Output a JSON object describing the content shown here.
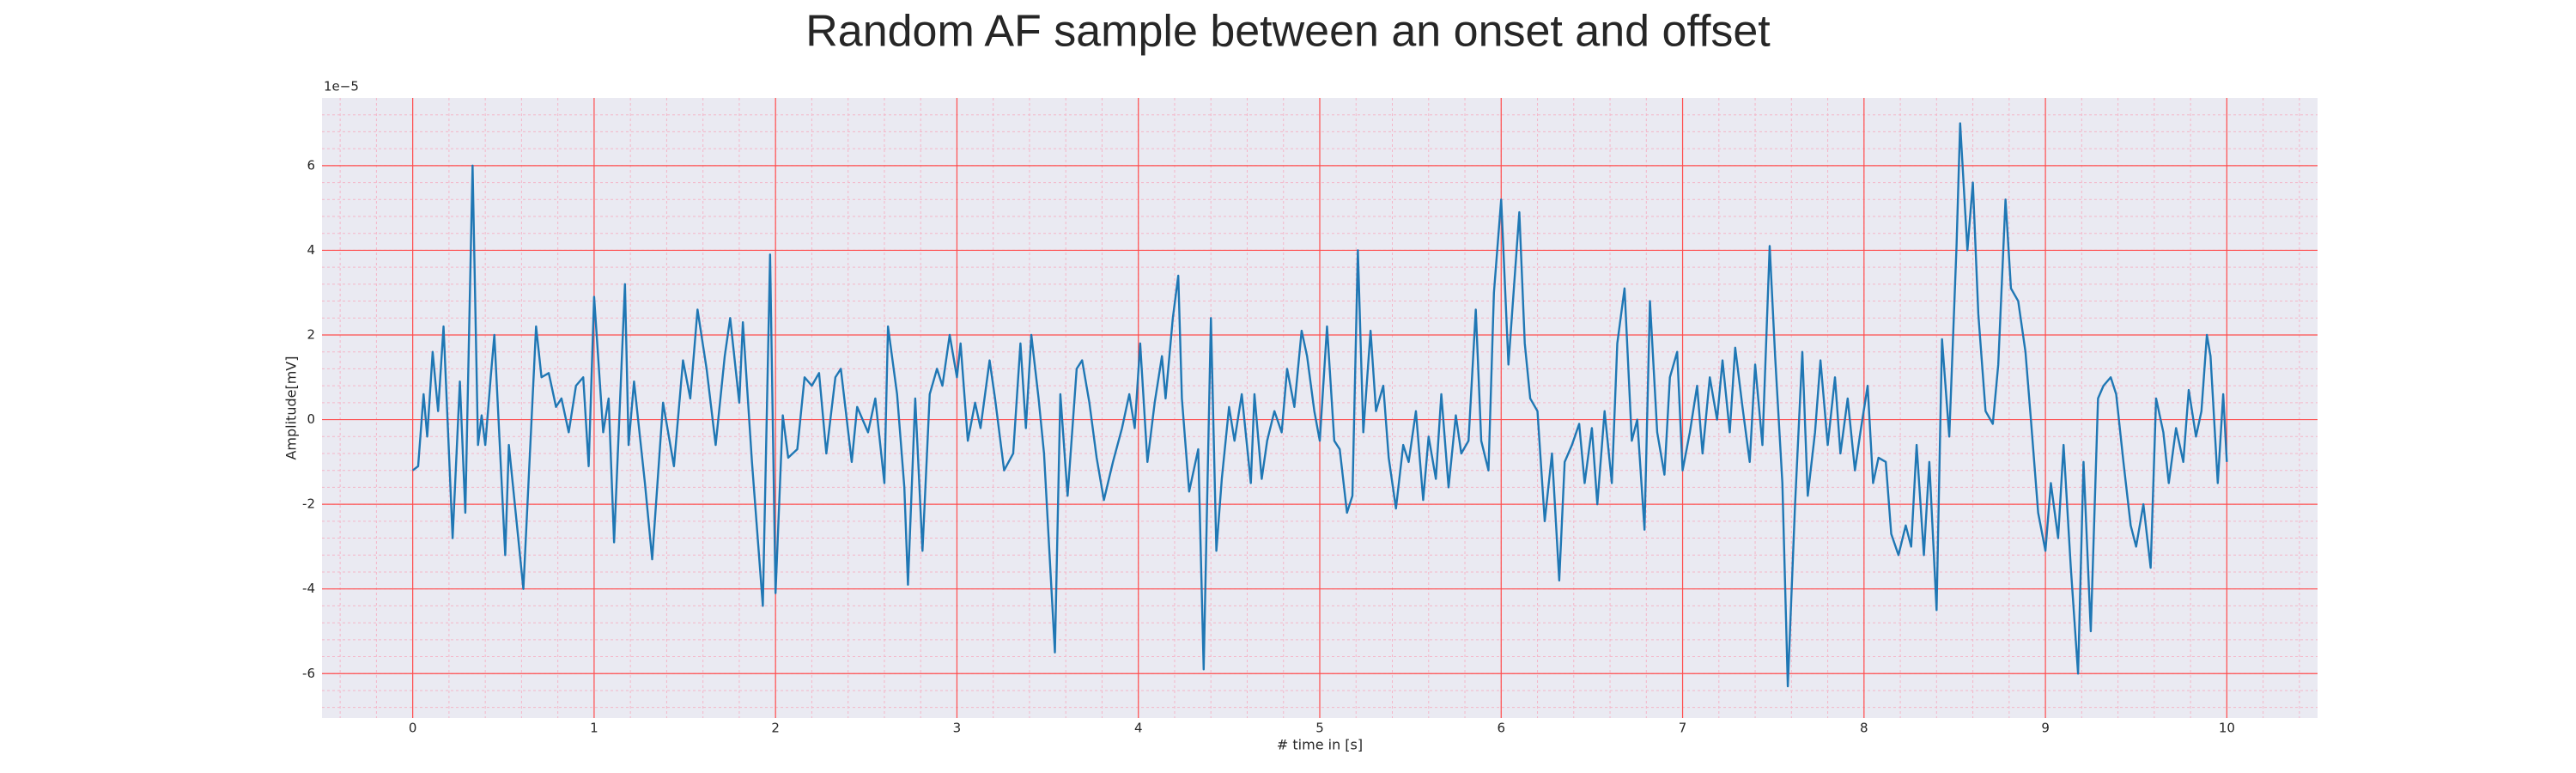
{
  "chart_data": {
    "type": "line",
    "title": "Random AF sample between an onset and offset",
    "x_label": "# time in [s]",
    "y_label": "Amplitude[mV]",
    "y_offset_label": "1e−5",
    "color": "#1f77b4",
    "grid_color": "#ff4d4d",
    "minor_grid_color": "#f4b6c8",
    "background": "#eaeaf2",
    "grid": true,
    "minor_grid": true,
    "xlim": [
      -0.5,
      10.5
    ],
    "xticks": [
      0,
      1,
      2,
      3,
      4,
      5,
      6,
      7,
      8,
      9,
      10
    ],
    "ylim": [
      -7.05,
      7.6
    ],
    "yticks": [
      -6,
      -4,
      -2,
      0,
      2,
      4,
      6
    ],
    "x": [
      0,
      0.03,
      0.06,
      0.08,
      0.11,
      0.14,
      0.17,
      0.22,
      0.26,
      0.29,
      0.33,
      0.36,
      0.38,
      0.4,
      0.43,
      0.45,
      0.51,
      0.53,
      0.61,
      0.68,
      0.71,
      0.75,
      0.79,
      0.82,
      0.86,
      0.9,
      0.94,
      0.97,
      1.0,
      1.05,
      1.08,
      1.11,
      1.17,
      1.19,
      1.22,
      1.28,
      1.32,
      1.38,
      1.44,
      1.49,
      1.53,
      1.57,
      1.62,
      1.67,
      1.72,
      1.75,
      1.8,
      1.82,
      1.87,
      1.93,
      1.97,
      2.0,
      2.04,
      2.07,
      2.12,
      2.16,
      2.2,
      2.24,
      2.28,
      2.33,
      2.36,
      2.42,
      2.45,
      2.51,
      2.55,
      2.6,
      2.62,
      2.67,
      2.71,
      2.73,
      2.77,
      2.81,
      2.85,
      2.89,
      2.92,
      2.96,
      3.0,
      3.02,
      3.06,
      3.1,
      3.13,
      3.18,
      3.21,
      3.26,
      3.31,
      3.35,
      3.38,
      3.41,
      3.45,
      3.48,
      3.54,
      3.57,
      3.61,
      3.66,
      3.69,
      3.73,
      3.77,
      3.81,
      3.86,
      3.91,
      3.95,
      3.98,
      4.01,
      4.05,
      4.09,
      4.13,
      4.15,
      4.19,
      4.22,
      4.24,
      4.28,
      4.33,
      4.36,
      4.4,
      4.43,
      4.46,
      4.5,
      4.53,
      4.57,
      4.62,
      4.64,
      4.68,
      4.71,
      4.75,
      4.79,
      4.82,
      4.86,
      4.9,
      4.93,
      4.97,
      5.0,
      5.04,
      5.08,
      5.11,
      5.15,
      5.18,
      5.21,
      5.24,
      5.28,
      5.31,
      5.35,
      5.38,
      5.42,
      5.46,
      5.49,
      5.53,
      5.57,
      5.6,
      5.64,
      5.67,
      5.71,
      5.75,
      5.78,
      5.82,
      5.86,
      5.89,
      5.93,
      5.96,
      6.0,
      6.04,
      6.07,
      6.1,
      6.13,
      6.16,
      6.2,
      6.24,
      6.28,
      6.32,
      6.35,
      6.39,
      6.43,
      6.46,
      6.5,
      6.53,
      6.57,
      6.61,
      6.64,
      6.68,
      6.72,
      6.75,
      6.79,
      6.82,
      6.86,
      6.9,
      6.93,
      6.97,
      7.0,
      7.04,
      7.08,
      7.11,
      7.15,
      7.19,
      7.22,
      7.26,
      7.29,
      7.33,
      7.37,
      7.4,
      7.44,
      7.48,
      7.51,
      7.55,
      7.58,
      7.62,
      7.66,
      7.69,
      7.73,
      7.76,
      7.8,
      7.84,
      7.87,
      7.91,
      7.95,
      7.98,
      8.02,
      8.05,
      8.08,
      8.12,
      8.15,
      8.19,
      8.23,
      8.26,
      8.29,
      8.33,
      8.36,
      8.4,
      8.43,
      8.47,
      8.51,
      8.53,
      8.57,
      8.6,
      8.63,
      8.67,
      8.71,
      8.74,
      8.78,
      8.81,
      8.85,
      8.89,
      8.92,
      8.96,
      9.0,
      9.03,
      9.07,
      9.1,
      9.14,
      9.18,
      9.21,
      9.25,
      9.29,
      9.32,
      9.36,
      9.39,
      9.43,
      9.47,
      9.5,
      9.54,
      9.58,
      9.61,
      9.65,
      9.68,
      9.72,
      9.76,
      9.79,
      9.83,
      9.86,
      9.89,
      9.91,
      9.95,
      9.98,
      10.0
    ],
    "values": [
      -1.2,
      -1.1,
      0.6,
      -0.4,
      1.6,
      0.2,
      2.2,
      -2.8,
      0.9,
      -2.2,
      6.0,
      -0.6,
      0.1,
      -0.6,
      1.0,
      2.0,
      -3.2,
      -0.6,
      -4.0,
      2.2,
      1.0,
      1.1,
      0.3,
      0.5,
      -0.3,
      0.8,
      1.0,
      -1.1,
      2.9,
      -0.3,
      0.5,
      -2.9,
      3.2,
      -0.6,
      0.9,
      -1.5,
      -3.3,
      0.4,
      -1.1,
      1.4,
      0.5,
      2.6,
      1.2,
      -0.6,
      1.5,
      2.4,
      0.4,
      2.3,
      -1.0,
      -4.4,
      3.9,
      -4.1,
      0.1,
      -0.9,
      -0.7,
      1.0,
      0.8,
      1.1,
      -0.8,
      1.0,
      1.2,
      -1.0,
      0.3,
      -0.3,
      0.5,
      -1.5,
      2.2,
      0.6,
      -1.6,
      -3.9,
      0.5,
      -3.1,
      0.6,
      1.2,
      0.8,
      2.0,
      1.0,
      1.8,
      -0.5,
      0.4,
      -0.2,
      1.4,
      0.5,
      -1.2,
      -0.8,
      1.8,
      -0.2,
      2.0,
      0.5,
      -0.8,
      -5.5,
      0.6,
      -1.8,
      1.2,
      1.4,
      0.4,
      -0.9,
      -1.9,
      -1.0,
      -0.2,
      0.6,
      -0.2,
      1.8,
      -1.0,
      0.4,
      1.5,
      0.5,
      2.4,
      3.4,
      0.5,
      -1.7,
      -0.7,
      -5.9,
      2.4,
      -3.1,
      -1.4,
      0.3,
      -0.5,
      0.6,
      -1.5,
      0.6,
      -1.4,
      -0.5,
      0.2,
      -0.3,
      1.2,
      0.3,
      2.1,
      1.5,
      0.2,
      -0.5,
      2.2,
      -0.5,
      -0.7,
      -2.2,
      -1.8,
      4.0,
      -0.3,
      2.1,
      0.2,
      0.8,
      -0.9,
      -2.1,
      -0.6,
      -1.0,
      0.2,
      -1.9,
      -0.4,
      -1.4,
      0.6,
      -1.6,
      0.1,
      -0.8,
      -0.5,
      2.6,
      -0.5,
      -1.2,
      3.0,
      5.2,
      1.3,
      3.1,
      4.9,
      1.8,
      0.5,
      0.2,
      -2.4,
      -0.8,
      -3.8,
      -1.0,
      -0.6,
      -0.1,
      -1.5,
      -0.2,
      -2.0,
      0.2,
      -1.5,
      1.8,
      3.1,
      -0.5,
      0.0,
      -2.6,
      2.8,
      -0.3,
      -1.3,
      1.0,
      1.6,
      -1.2,
      -0.3,
      0.8,
      -0.8,
      1.0,
      0.0,
      1.4,
      -0.3,
      1.7,
      0.3,
      -1.0,
      1.3,
      -0.6,
      4.1,
      1.5,
      -1.5,
      -6.3,
      -2.0,
      1.6,
      -1.8,
      -0.3,
      1.4,
      -0.6,
      1.0,
      -0.8,
      0.5,
      -1.2,
      -0.3,
      0.8,
      -1.5,
      -0.9,
      -1.0,
      -2.7,
      -3.2,
      -2.5,
      -3.0,
      -0.6,
      -3.2,
      -1.0,
      -4.5,
      1.9,
      -0.4,
      4.1,
      7.0,
      4.0,
      5.6,
      2.5,
      0.2,
      -0.1,
      1.3,
      5.2,
      3.1,
      2.8,
      1.6,
      0.0,
      -2.2,
      -3.1,
      -1.5,
      -2.8,
      -0.6,
      -3.5,
      -6.0,
      -1.0,
      -5.0,
      0.5,
      0.8,
      1.0,
      0.6,
      -1.0,
      -2.5,
      -3.0,
      -2.0,
      -3.5,
      0.5,
      -0.3,
      -1.5,
      -0.2,
      -1.0,
      0.7,
      -0.4,
      0.2,
      2.0,
      1.5,
      -1.5,
      0.6,
      -1.0
    ]
  }
}
